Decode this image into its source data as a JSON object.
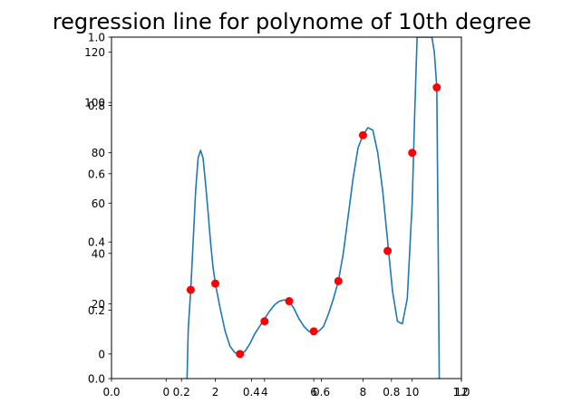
{
  "chart_data": {
    "type": "scatter",
    "title": "regression line for polynome of 10th degree",
    "xlabel": "",
    "ylabel": "",
    "xlim": [
      -2.22,
      12
    ],
    "ylim": [
      -9.78,
      126
    ],
    "outer_axis": {
      "xlim": [
        0,
        1
      ],
      "ylim": [
        0,
        1
      ],
      "x_ticks": [
        0.0,
        0.2,
        0.4,
        0.6,
        0.8,
        1.0
      ],
      "y_ticks": [
        0.0,
        0.2,
        0.4,
        0.6,
        0.8,
        1.0
      ],
      "x_tick_labels": [
        "0.0",
        "0.2",
        "0.4",
        "0.6",
        "0.8",
        "1.0"
      ],
      "y_tick_labels": [
        "0.0",
        "0.2",
        "0.4",
        "0.6",
        "0.8",
        "1.0"
      ]
    },
    "x_ticks": [
      0,
      2,
      4,
      6,
      8,
      10,
      12
    ],
    "y_ticks": [
      0,
      20,
      40,
      60,
      80,
      100,
      120
    ],
    "x_tick_labels": [
      "0",
      "2",
      "4",
      "6",
      "8",
      "10",
      "12"
    ],
    "y_tick_labels": [
      "0",
      "20",
      "40",
      "60",
      "80",
      "100",
      "120"
    ],
    "grid": false,
    "series": [
      {
        "kind": "scatter",
        "color": "#ff0000",
        "x": [
          1,
          2,
          3,
          4,
          5,
          6,
          7,
          8,
          9,
          10,
          11
        ],
        "y": [
          25.5,
          28,
          0,
          13,
          21,
          9,
          29,
          87,
          41,
          80,
          106
        ]
      },
      {
        "kind": "line",
        "color": "#1f77b4",
        "x": [
          0.85,
          0.9,
          1.0,
          1.1,
          1.2,
          1.3,
          1.4,
          1.5,
          1.6,
          1.7,
          1.8,
          1.9,
          2.0,
          2.2,
          2.4,
          2.6,
          2.8,
          3.0,
          3.2,
          3.4,
          3.6,
          3.8,
          4.0,
          4.2,
          4.4,
          4.6,
          4.8,
          5.0,
          5.2,
          5.4,
          5.6,
          5.8,
          6.0,
          6.2,
          6.4,
          6.6,
          6.8,
          7.0,
          7.2,
          7.4,
          7.6,
          7.8,
          8.0,
          8.2,
          8.4,
          8.6,
          8.8,
          9.0,
          9.2,
          9.4,
          9.6,
          9.8,
          10.0,
          10.1,
          10.2,
          10.8,
          10.9,
          11.0,
          11.05,
          11.1
        ],
        "y": [
          -9.78,
          10,
          25.5,
          45,
          65,
          78,
          81,
          78,
          68,
          57,
          45,
          35,
          28,
          18,
          9,
          3,
          0.5,
          0,
          1,
          4,
          8,
          11,
          14,
          17,
          19.5,
          21,
          21.5,
          21,
          18,
          14,
          11,
          9,
          8.5,
          9,
          11,
          16,
          22,
          29,
          40,
          55,
          70,
          82,
          87,
          90,
          89,
          80,
          65,
          45,
          25,
          13,
          12,
          22,
          60,
          95,
          126,
          126,
          120,
          106,
          50,
          -9.78
        ]
      }
    ]
  }
}
